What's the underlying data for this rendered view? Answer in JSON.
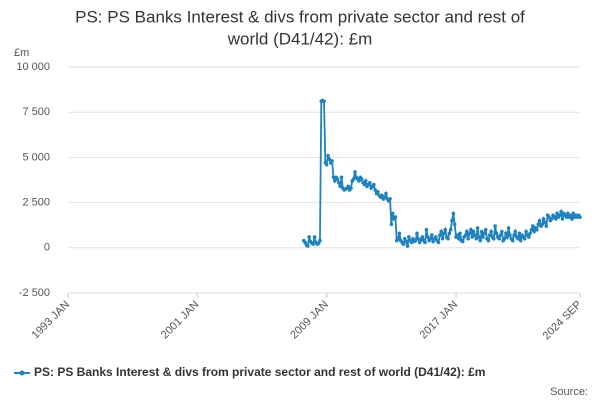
{
  "chart_data": {
    "type": "line",
    "title": [
      "PS: PS Banks Interest & divs from private sector and rest of",
      "world (D41/42): £m"
    ],
    "y_label": "£m",
    "source": "Source:",
    "x": [
      "2007 AUG",
      "2007 SEP",
      "2007 OCT",
      "2007 NOV",
      "2007 DEC",
      "2008 JAN",
      "2008 FEB",
      "2008 MAR",
      "2008 APR",
      "2008 MAY",
      "2008 JUN",
      "2008 JUL",
      "2008 AUG",
      "2008 SEP",
      "2008 OCT",
      "2008 NOV",
      "2008 DEC",
      "2009 JAN",
      "2009 FEB",
      "2009 MAR",
      "2009 APR",
      "2009 MAY",
      "2009 JUN",
      "2009 JUL",
      "2009 AUG",
      "2009 SEP",
      "2009 OCT",
      "2009 NOV",
      "2009 DEC",
      "2010 JAN",
      "2010 FEB",
      "2010 MAR",
      "2010 APR",
      "2010 MAY",
      "2010 JUN",
      "2010 JUL",
      "2010 AUG",
      "2010 SEP",
      "2010 OCT",
      "2010 NOV",
      "2010 DEC",
      "2011 JAN",
      "2011 FEB",
      "2011 MAR",
      "2011 APR",
      "2011 MAY",
      "2011 JUN",
      "2011 JUL",
      "2011 AUG",
      "2011 SEP",
      "2011 OCT",
      "2011 NOV",
      "2011 DEC",
      "2012 JAN",
      "2012 FEB",
      "2012 MAR",
      "2012 APR",
      "2012 MAY",
      "2012 JUN",
      "2012 JUL",
      "2012 AUG",
      "2012 SEP",
      "2012 OCT",
      "2012 NOV",
      "2012 DEC",
      "2013 JAN",
      "2013 FEB",
      "2013 MAR",
      "2013 APR",
      "2013 MAY",
      "2013 JUN",
      "2013 JUL",
      "2013 AUG",
      "2013 SEP",
      "2013 OCT",
      "2013 NOV",
      "2013 DEC",
      "2014 JAN",
      "2014 FEB",
      "2014 MAR",
      "2014 APR",
      "2014 MAY",
      "2014 JUN",
      "2014 JUL",
      "2014 AUG",
      "2014 SEP",
      "2014 OCT",
      "2014 NOV",
      "2014 DEC",
      "2015 JAN",
      "2015 FEB",
      "2015 MAR",
      "2015 APR",
      "2015 MAY",
      "2015 JUN",
      "2015 JUL",
      "2015 AUG",
      "2015 SEP",
      "2015 OCT",
      "2015 NOV",
      "2015 DEC",
      "2016 JAN",
      "2016 FEB",
      "2016 MAR",
      "2016 APR",
      "2016 MAY",
      "2016 JUN",
      "2016 JUL",
      "2016 AUG",
      "2016 SEP",
      "2016 OCT",
      "2016 NOV",
      "2016 DEC",
      "2017 JAN",
      "2017 FEB",
      "2017 MAR",
      "2017 APR",
      "2017 MAY",
      "2017 JUN",
      "2017 JUL",
      "2017 AUG",
      "2017 SEP",
      "2017 OCT",
      "2017 NOV",
      "2017 DEC",
      "2018 JAN",
      "2018 FEB",
      "2018 MAR",
      "2018 APR",
      "2018 MAY",
      "2018 JUN",
      "2018 JUL",
      "2018 AUG",
      "2018 SEP",
      "2018 OCT",
      "2018 NOV",
      "2018 DEC",
      "2019 JAN",
      "2019 FEB",
      "2019 MAR",
      "2019 APR",
      "2019 MAY",
      "2019 JUN",
      "2019 JUL",
      "2019 AUG",
      "2019 SEP",
      "2019 OCT",
      "2019 NOV",
      "2019 DEC",
      "2020 JAN",
      "2020 FEB",
      "2020 MAR",
      "2020 APR",
      "2020 MAY",
      "2020 JUN",
      "2020 JUL",
      "2020 AUG",
      "2020 SEP",
      "2020 OCT",
      "2020 NOV",
      "2020 DEC",
      "2021 JAN",
      "2021 FEB",
      "2021 MAR",
      "2021 APR",
      "2021 MAY",
      "2021 JUN",
      "2021 JUL",
      "2021 AUG",
      "2021 SEP",
      "2021 OCT",
      "2021 NOV",
      "2021 DEC",
      "2022 JAN",
      "2022 FEB",
      "2022 MAR",
      "2022 APR",
      "2022 MAY",
      "2022 JUN",
      "2022 JUL",
      "2022 AUG",
      "2022 SEP",
      "2022 OCT",
      "2022 NOV",
      "2022 DEC",
      "2023 JAN",
      "2023 FEB",
      "2023 MAR",
      "2023 APR",
      "2023 MAY",
      "2023 JUN",
      "2023 JUL",
      "2023 AUG",
      "2023 SEP",
      "2023 OCT",
      "2023 NOV",
      "2023 DEC",
      "2024 JAN",
      "2024 FEB",
      "2024 MAR",
      "2024 APR",
      "2024 MAY",
      "2024 JUN",
      "2024 JUL",
      "2024 AUG",
      "2024 SEP"
    ],
    "series": [
      {
        "name": "PS: PS Banks Interest & divs from private sector and rest of world (D41/42): £m",
        "color": "#1f83c0",
        "values": [
          400,
          300,
          150,
          100,
          600,
          350,
          250,
          200,
          600,
          300,
          200,
          250,
          400,
          8100,
          8150,
          8100,
          4700,
          4600,
          5100,
          4900,
          4700,
          4800,
          3900,
          3700,
          3900,
          3800,
          3600,
          3400,
          3900,
          3300,
          3200,
          3250,
          3300,
          3400,
          3200,
          3300,
          3700,
          3800,
          4200,
          3900,
          3800,
          3700,
          3900,
          3800,
          3600,
          3500,
          3700,
          3400,
          3500,
          3600,
          3300,
          3400,
          3500,
          3200,
          3000,
          3100,
          2900,
          2800,
          2900,
          2700,
          2800,
          3000,
          2700,
          2600,
          2700,
          1300,
          1900,
          1600,
          1700,
          400,
          500,
          800,
          400,
          300,
          200,
          500,
          350,
          100,
          600,
          400,
          300,
          500,
          350,
          400,
          800,
          500,
          300,
          450,
          600,
          400,
          300,
          1000,
          600,
          400,
          500,
          700,
          350,
          500,
          600,
          400,
          300,
          700,
          900,
          500,
          800,
          1000,
          600,
          500,
          800,
          1000,
          1500,
          1900,
          1300,
          600,
          700,
          500,
          800,
          400,
          350,
          600,
          700,
          900,
          500,
          800,
          1000,
          600,
          900,
          700,
          500,
          1100,
          600,
          400,
          900,
          600,
          800,
          1000,
          500,
          400,
          700,
          900,
          600,
          500,
          1200,
          800,
          600,
          500,
          700,
          900,
          400,
          500,
          800,
          600,
          1100,
          700,
          500,
          400,
          700,
          900,
          600,
          500,
          800,
          400,
          700,
          600,
          500,
          900,
          700,
          600,
          800,
          1000,
          1200,
          900,
          1100,
          1000,
          1300,
          1500,
          1200,
          1300,
          1600,
          1400,
          1200,
          1800,
          1700,
          1500,
          1600,
          1800,
          1700,
          1600,
          1900,
          1700,
          1800,
          2000,
          1600,
          1900,
          1800,
          1700,
          1900,
          1700,
          1800,
          1600,
          1900,
          1700,
          1800,
          1700,
          1800,
          1700
        ]
      }
    ],
    "xlim": [
      "1993 JAN",
      "2024 SEP"
    ],
    "xticks": [
      "1993 JAN",
      "2001 JAN",
      "2009 JAN",
      "2017 JAN",
      "2024 SEP"
    ],
    "ylim": [
      -2500,
      10000
    ],
    "yticks": [
      {
        "value": -2500,
        "label": "-2 500"
      },
      0,
      {
        "value": 2500,
        "label": "2 500"
      },
      {
        "value": 5000,
        "label": "5 000"
      },
      {
        "value": 7500,
        "label": "7 500"
      },
      {
        "value": 10000,
        "label": "10 000"
      }
    ],
    "grid": true,
    "legend": "bottom"
  }
}
